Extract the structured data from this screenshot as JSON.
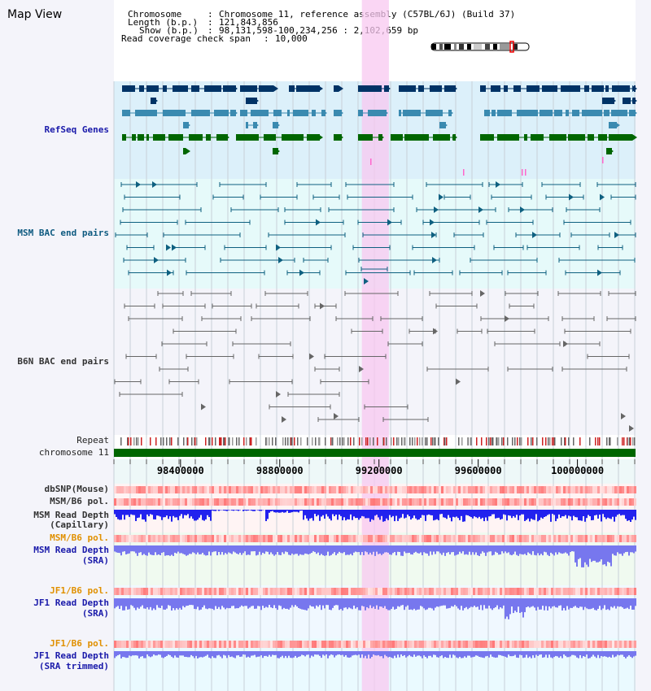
{
  "panel_title": "Map View",
  "info": {
    "chromosome_key": "Chromosome",
    "chromosome_value": "Chromosome 11, reference assembly (C57BL/6J) (Build 37)",
    "length_key": "Length (b.p.)",
    "length_value": "121,843,856",
    "show_key": "Show (b.p.)",
    "show_value": "98,131,598-100,234,256 : 2,102,659 bp",
    "coverage_key": "Read coverage check span",
    "coverage_value": "10,000"
  },
  "tracks": {
    "refseq": "RefSeq Genes",
    "msm_bac": "MSM BAC end pairs",
    "b6n_bac": "B6N BAC end pairs",
    "repeat": "Repeat",
    "chromosome": "chromosome 11",
    "dbsnp": "dbSNP(Mouse)",
    "msm_b6_pol_1": "MSM/B6 pol.",
    "msm_depth_cap_1": "MSM Read Depth",
    "msm_depth_cap_2": "(Capillary)",
    "msm_b6_pol_2": "MSM/B6 pol.",
    "msm_depth_sra_1": "MSM Read Depth",
    "msm_depth_sra_2": "(SRA)",
    "jf1_b6_pol_1": "JF1/B6 pol.",
    "jf1_depth_sra_1": "JF1 Read Depth",
    "jf1_depth_sra_2": "(SRA)",
    "jf1_b6_pol_2": "JF1/B6 pol.",
    "jf1_depth_trim_1": "JF1 Read Depth",
    "jf1_depth_trim_2": "(SRA trimmed)"
  },
  "axis": {
    "ticks": [
      {
        "label": "98400000",
        "bp": 98400000
      },
      {
        "label": "98800000",
        "bp": 98800000
      },
      {
        "label": "99200000",
        "bp": 99200000
      },
      {
        "label": "99600000",
        "bp": 99600000
      },
      {
        "label": "100000000",
        "bp": 100000000
      }
    ],
    "start_bp": 98131598,
    "end_bp": 100234256
  },
  "highlight": {
    "start_bp": 99131000,
    "end_bp": 99240000
  },
  "colors": {
    "refseq_dark": "#003366",
    "refseq_mid": "#3a8ab0",
    "refseq_green": "#006600",
    "msm_bac": "#0e6080",
    "b6n_bac": "#666666",
    "chromosome_bar": "#006600",
    "read_depth_capillary": "#2222ee",
    "read_depth_sra": "#7777ee",
    "pol_heat": "#ee3333",
    "highlight": "#f8c8f0"
  }
}
